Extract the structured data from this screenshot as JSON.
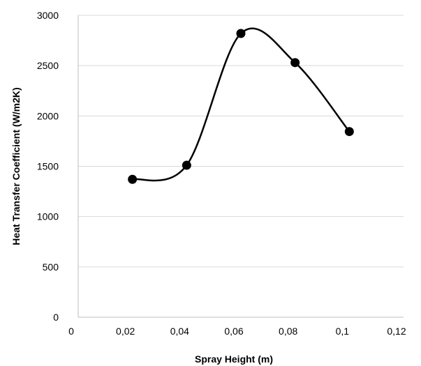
{
  "chart_data": {
    "type": "scatter",
    "title": "",
    "xlabel": "Spray Height (m)",
    "ylabel": "Heat  Transfer  Coefficient  (W/m2K)",
    "xlim": [
      0,
      0.12
    ],
    "ylim": [
      0,
      3000
    ],
    "x_ticks": [
      0,
      0.02,
      0.04,
      0.06,
      0.08,
      0.1,
      0.12
    ],
    "x_tick_labels": [
      "0",
      "0,02",
      "0,04",
      "0,06",
      "0,08",
      "0,1",
      "0,12"
    ],
    "y_ticks": [
      0,
      500,
      1000,
      1500,
      2000,
      2500,
      3000
    ],
    "y_tick_labels": [
      "0",
      "500",
      "1000",
      "1500",
      "2000",
      "2500",
      "3000"
    ],
    "grid": "horizontal",
    "smoothed_line": true,
    "series": [
      {
        "x": [
          0.02,
          0.04,
          0.06,
          0.08,
          0.1
        ],
        "y": [
          1370,
          1510,
          2820,
          2530,
          1845
        ],
        "color": "#000000"
      }
    ]
  }
}
